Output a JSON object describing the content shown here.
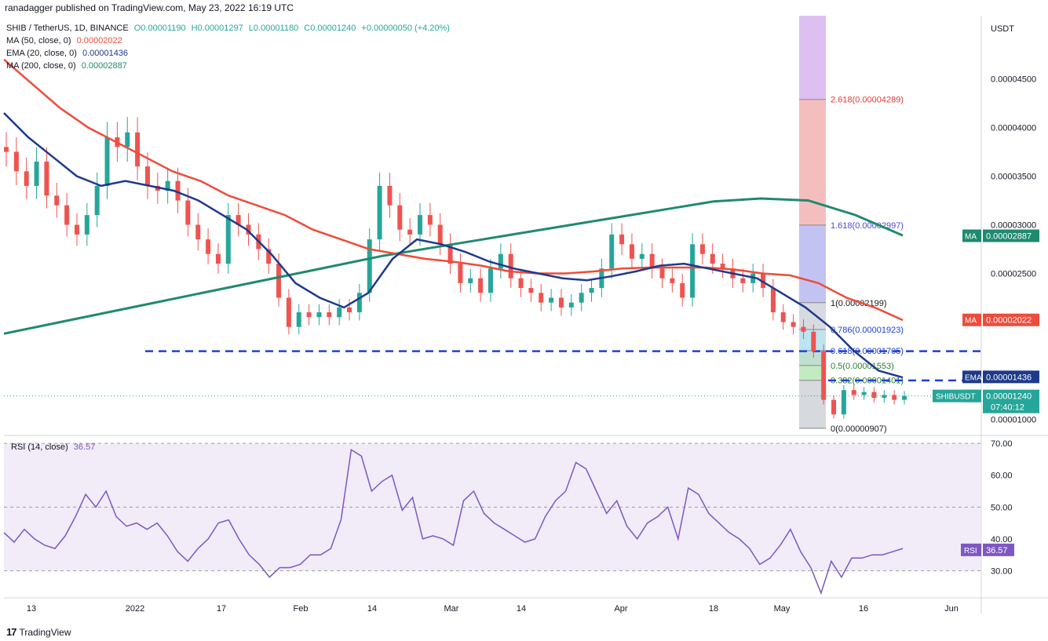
{
  "header": "ranadagger published on TradingView.com, May 23, 2022 16:19 UTC",
  "legend": {
    "symbol": "SHIB / TetherUS, 1D, BINANCE",
    "open": "O0.00001190",
    "high": "H0.00001297",
    "low": "L0.00001180",
    "close": "C0.00001240",
    "change": "+0.00000050 (+4.20%)",
    "ma50_label": "MA (50, close, 0)",
    "ma50_value": "0.00002022",
    "ema20_label": "EMA (20, close, 0)",
    "ema20_value": "0.00001436",
    "ma200_label": "MA (200, close, 0)",
    "ma200_value": "0.00002887"
  },
  "rsi_legend": {
    "label": "RSI (14, close)",
    "value": "36.57"
  },
  "footer": {
    "brand": "TradingView",
    "logo": "17"
  },
  "colors": {
    "up": "#26a69a",
    "down": "#ef5350",
    "ema": "#1e3a8a",
    "ma50": "#ef4b3a",
    "ma200": "#1f8a6f",
    "rsi": "#7e57c2",
    "level": "#1e40d8"
  },
  "chart_data": {
    "type": "line",
    "currency_label": "USDT",
    "x_ticks": [
      "13",
      "2022",
      "17",
      "Feb",
      "14",
      "Mar",
      "14",
      "Apr",
      "18",
      "May",
      "16",
      "Jun"
    ],
    "y_ticks": [
      "0.00004500",
      "0.00004000",
      "0.00003500",
      "0.00003000",
      "0.00002500",
      "0.00001000"
    ],
    "ylim": [
      8.5e-06,
      5.15e-05
    ],
    "candles_approx": [
      [
        3.8e-05,
        3.75e-05
      ],
      [
        3.75e-05,
        3.55e-05
      ],
      [
        3.55e-05,
        3.4e-05
      ],
      [
        3.4e-05,
        3.65e-05
      ],
      [
        3.65e-05,
        3.3e-05
      ],
      [
        3.3e-05,
        3.2e-05
      ],
      [
        3.2e-05,
        3e-05
      ],
      [
        3e-05,
        2.9e-05
      ],
      [
        2.9e-05,
        3.1e-05
      ],
      [
        3.1e-05,
        3.4e-05
      ],
      [
        3.4e-05,
        3.9e-05
      ],
      [
        3.9e-05,
        3.8e-05
      ],
      [
        3.8e-05,
        3.95e-05
      ],
      [
        3.95e-05,
        3.6e-05
      ],
      [
        3.6e-05,
        3.4e-05
      ],
      [
        3.4e-05,
        3.35e-05
      ],
      [
        3.35e-05,
        3.45e-05
      ],
      [
        3.45e-05,
        3.25e-05
      ],
      [
        3.25e-05,
        3e-05
      ],
      [
        3e-05,
        2.85e-05
      ],
      [
        2.85e-05,
        2.7e-05
      ],
      [
        2.7e-05,
        2.6e-05
      ],
      [
        2.6e-05,
        3.1e-05
      ],
      [
        3.1e-05,
        3e-05
      ],
      [
        3e-05,
        2.9e-05
      ],
      [
        2.9e-05,
        2.75e-05
      ],
      [
        2.75e-05,
        2.6e-05
      ],
      [
        2.6e-05,
        2.25e-05
      ],
      [
        2.25e-05,
        1.95e-05
      ],
      [
        1.95e-05,
        2.1e-05
      ],
      [
        2.1e-05,
        2.05e-05
      ],
      [
        2.05e-05,
        2.1e-05
      ],
      [
        2.1e-05,
        2.05e-05
      ],
      [
        2.05e-05,
        2.15e-05
      ],
      [
        2.15e-05,
        2.1e-05
      ],
      [
        2.1e-05,
        2.3e-05
      ],
      [
        2.3e-05,
        2.85e-05
      ],
      [
        2.85e-05,
        3.4e-05
      ],
      [
        3.4e-05,
        3.2e-05
      ],
      [
        3.2e-05,
        2.95e-05
      ],
      [
        2.95e-05,
        2.9e-05
      ],
      [
        2.9e-05,
        3.1e-05
      ],
      [
        3.1e-05,
        3e-05
      ],
      [
        3e-05,
        2.8e-05
      ],
      [
        2.8e-05,
        2.6e-05
      ],
      [
        2.6e-05,
        2.4e-05
      ],
      [
        2.4e-05,
        2.45e-05
      ],
      [
        2.45e-05,
        2.3e-05
      ],
      [
        2.3e-05,
        2.55e-05
      ],
      [
        2.55e-05,
        2.7e-05
      ],
      [
        2.7e-05,
        2.45e-05
      ],
      [
        2.45e-05,
        2.35e-05
      ],
      [
        2.35e-05,
        2.3e-05
      ],
      [
        2.3e-05,
        2.2e-05
      ],
      [
        2.2e-05,
        2.25e-05
      ],
      [
        2.25e-05,
        2.15e-05
      ],
      [
        2.15e-05,
        2.2e-05
      ],
      [
        2.2e-05,
        2.3e-05
      ],
      [
        2.3e-05,
        2.35e-05
      ],
      [
        2.35e-05,
        2.55e-05
      ],
      [
        2.55e-05,
        2.9e-05
      ],
      [
        2.9e-05,
        2.8e-05
      ],
      [
        2.8e-05,
        2.65e-05
      ],
      [
        2.65e-05,
        2.7e-05
      ],
      [
        2.7e-05,
        2.55e-05
      ],
      [
        2.55e-05,
        2.45e-05
      ],
      [
        2.45e-05,
        2.4e-05
      ],
      [
        2.4e-05,
        2.25e-05
      ],
      [
        2.25e-05,
        2.8e-05
      ],
      [
        2.8e-05,
        2.7e-05
      ],
      [
        2.7e-05,
        2.6e-05
      ],
      [
        2.6e-05,
        2.55e-05
      ],
      [
        2.55e-05,
        2.45e-05
      ],
      [
        2.45e-05,
        2.4e-05
      ],
      [
        2.4e-05,
        2.5e-05
      ],
      [
        2.5e-05,
        2.35e-05
      ],
      [
        2.35e-05,
        2.1e-05
      ],
      [
        2.1e-05,
        2e-05
      ],
      [
        2e-05,
        1.95e-05
      ],
      [
        1.95e-05,
        1.9e-05
      ],
      [
        1.9e-05,
        1.7e-05
      ],
      [
        1.7e-05,
        1.2e-05
      ],
      [
        1.2e-05,
        1.05e-05
      ],
      [
        1.05e-05,
        1.3e-05
      ],
      [
        1.3e-05,
        1.25e-05
      ],
      [
        1.25e-05,
        1.28e-05
      ],
      [
        1.28e-05,
        1.22e-05
      ],
      [
        1.22e-05,
        1.25e-05
      ],
      [
        1.25e-05,
        1.2e-05
      ],
      [
        1.2e-05,
        1.24e-05
      ]
    ],
    "series": [
      {
        "name": "EMA",
        "values": [
          4.15e-05,
          3.9e-05,
          3.7e-05,
          3.5e-05,
          3.4e-05,
          3.45e-05,
          3.4e-05,
          3.35e-05,
          3.25e-05,
          3.1e-05,
          2.95e-05,
          2.7e-05,
          2.4e-05,
          2.25e-05,
          2.15e-05,
          2.3e-05,
          2.65e-05,
          2.85e-05,
          2.8e-05,
          2.72e-05,
          2.62e-05,
          2.55e-05,
          2.5e-05,
          2.45e-05,
          2.43e-05,
          2.47e-05,
          2.52e-05,
          2.58e-05,
          2.6e-05,
          2.55e-05,
          2.5e-05,
          2.45e-05,
          2.3e-05,
          2.15e-05,
          1.95e-05,
          1.7e-05,
          1.5e-05,
          1.43e-05
        ]
      },
      {
        "name": "MA",
        "values": [
          4.7e-05,
          4.45e-05,
          4.2e-05,
          4e-05,
          3.85e-05,
          3.7e-05,
          3.55e-05,
          3.45e-05,
          3.3e-05,
          3.2e-05,
          3.1e-05,
          2.95e-05,
          2.85e-05,
          2.75e-05,
          2.7e-05,
          2.65e-05,
          2.62e-05,
          2.58e-05,
          2.52e-05,
          2.5e-05,
          2.5e-05,
          2.52e-05,
          2.55e-05,
          2.56e-05,
          2.56e-05,
          2.56e-05,
          2.54e-05,
          2.5e-05,
          2.48e-05,
          2.4e-05,
          2.25e-05,
          2.15e-05,
          2.02e-05
        ]
      },
      {
        "name": "MA",
        "values": [
          1.88e-05,
          1.98e-05,
          2.08e-05,
          2.18e-05,
          2.28e-05,
          2.38e-05,
          2.48e-05,
          2.58e-05,
          2.68e-05,
          2.76e-05,
          2.84e-05,
          2.92e-05,
          3e-05,
          3.08e-05,
          3.16e-05,
          3.24e-05,
          3.27e-05,
          3.25e-05,
          3.1e-05,
          2.89e-05
        ]
      }
    ],
    "horizontal_levels": [
      {
        "label": "0.00001700",
        "value": 1.7e-05
      },
      {
        "label": "0.00001400",
        "value": 1.4e-05
      }
    ],
    "price_tags": [
      {
        "name": "MA",
        "value": "0.00002887"
      },
      {
        "name": "MA",
        "value": "0.00002022"
      },
      {
        "name": "EMA",
        "value": "0.00001436"
      },
      {
        "name": "SHIBUSDT",
        "value": "0.00001240",
        "extra": "07:40:12"
      }
    ],
    "fib": [
      {
        "label": "2.618(0.00004289)",
        "value": 4.289e-05
      },
      {
        "label": "1.618(0.00002997)",
        "value": 2.997e-05
      },
      {
        "label": "1(0.00002199)",
        "value": 2.199e-05
      },
      {
        "label": "0.786(0.00001923)",
        "value": 1.923e-05
      },
      {
        "label": "0.618(0.00001705)",
        "value": 1.705e-05
      },
      {
        "label": "0.5(0.00001553)",
        "value": 1.553e-05
      },
      {
        "label": "0.382(0.00001401)",
        "value": 1.401e-05
      },
      {
        "label": "0(0.00000907)",
        "value": 9.07e-06
      }
    ],
    "rsi": {
      "y_ticks": [
        "70.00",
        "60.00",
        "50.00",
        "40.00",
        "30.00"
      ],
      "ylim": [
        22,
        72
      ],
      "values": [
        42,
        39,
        43,
        40,
        38,
        37,
        41,
        47,
        54,
        50,
        55,
        47,
        44,
        45,
        43,
        45,
        41,
        36,
        33,
        37,
        40,
        45,
        46,
        40,
        35,
        32,
        28,
        31,
        31,
        32,
        35,
        35,
        37,
        46,
        68,
        66,
        55,
        58,
        60,
        49,
        53,
        40,
        41,
        40,
        38,
        52,
        55,
        48,
        45,
        43,
        41,
        39,
        40,
        47,
        52,
        55,
        64,
        62,
        55,
        48,
        52,
        44,
        40,
        45,
        47,
        50,
        40,
        56,
        54,
        48,
        45,
        42,
        40,
        37,
        32,
        34,
        38,
        43,
        36,
        31,
        23,
        33,
        28,
        34,
        34,
        35,
        35,
        36,
        37
      ]
    }
  }
}
